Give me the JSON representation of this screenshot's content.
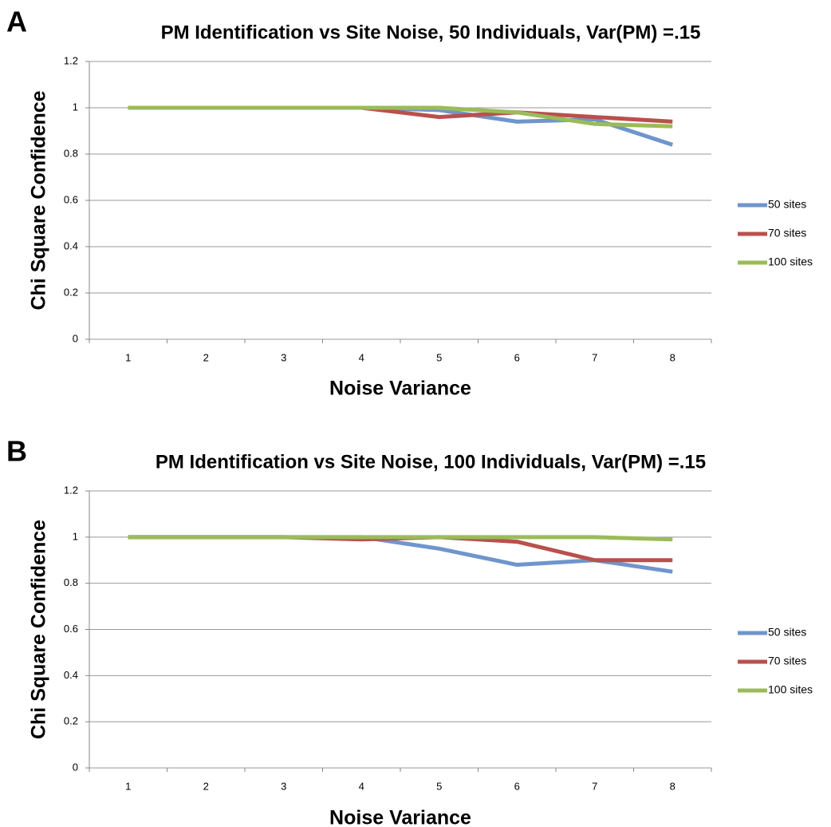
{
  "chart_data": [
    {
      "type": "line",
      "panel_label": "A",
      "title": "PM Identification vs Site Noise, 50 Individuals, Var(PM) =.15",
      "x_label": "Noise Variance",
      "y_label": "Chi Square Confidence",
      "categories": [
        "1",
        "2",
        "3",
        "4",
        "5",
        "6",
        "7",
        "8"
      ],
      "ylim": [
        0,
        1.2
      ],
      "yticks": [
        0,
        0.2,
        0.4,
        0.6,
        0.8,
        1,
        1.2
      ],
      "grid": true,
      "legend": "right",
      "series": [
        {
          "name": "50 sites",
          "color": "#6f95cc",
          "values": [
            1,
            1,
            1,
            1,
            0.99,
            0.94,
            0.95,
            0.84
          ]
        },
        {
          "name": "70 sites",
          "color": "#b9504c",
          "values": [
            1,
            1,
            1,
            1,
            0.96,
            0.98,
            0.96,
            0.94
          ]
        },
        {
          "name": "100 sites",
          "color": "#9bbb59",
          "values": [
            1,
            1,
            1,
            1,
            1,
            0.98,
            0.93,
            0.92
          ]
        }
      ]
    },
    {
      "type": "line",
      "panel_label": "B",
      "title": "PM Identification vs Site Noise, 100 Individuals, Var(PM) =.15",
      "x_label": "Noise Variance",
      "y_label": "Chi Square Confidence",
      "categories": [
        "1",
        "2",
        "3",
        "4",
        "5",
        "6",
        "7",
        "8"
      ],
      "ylim": [
        0,
        1.2
      ],
      "yticks": [
        0,
        0.2,
        0.4,
        0.6,
        0.8,
        1,
        1.2
      ],
      "grid": true,
      "legend": "right",
      "series": [
        {
          "name": "50 sites",
          "color": "#6f95cc",
          "values": [
            1,
            1,
            1,
            1,
            0.95,
            0.88,
            0.9,
            0.85
          ]
        },
        {
          "name": "70 sites",
          "color": "#b9504c",
          "values": [
            1,
            1,
            1,
            0.99,
            1,
            0.98,
            0.9,
            0.9
          ]
        },
        {
          "name": "100 sites",
          "color": "#9bbb59",
          "values": [
            1,
            1,
            1,
            1,
            1,
            1,
            1,
            0.99
          ]
        }
      ]
    }
  ]
}
